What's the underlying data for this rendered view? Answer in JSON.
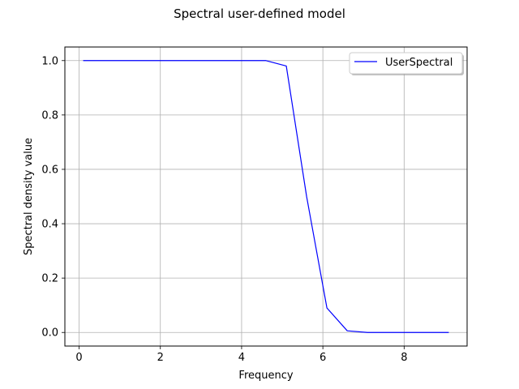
{
  "chart_data": {
    "type": "line",
    "title": "Spectral user-defined model",
    "xlabel": "Frequency",
    "ylabel": "Spectral density value",
    "xlim": [
      -0.35,
      9.55
    ],
    "ylim": [
      -0.05,
      1.05
    ],
    "xticks": [
      0,
      2,
      4,
      6,
      8
    ],
    "yticks": [
      0.0,
      0.2,
      0.4,
      0.6,
      0.8,
      1.0
    ],
    "xtick_labels": [
      "0",
      "2",
      "4",
      "6",
      "8"
    ],
    "ytick_labels": [
      "0.0",
      "0.2",
      "0.4",
      "0.6",
      "0.8",
      "1.0"
    ],
    "grid": true,
    "legend_position": "top-right",
    "series": [
      {
        "name": "UserSpectral",
        "color": "#0000ff",
        "x": [
          0.1,
          0.6,
          1.1,
          1.6,
          2.1,
          2.6,
          3.1,
          3.6,
          4.1,
          4.6,
          5.1,
          5.6,
          6.1,
          6.6,
          7.1,
          7.6,
          8.1,
          8.6,
          9.1
        ],
        "y": [
          1.0,
          1.0,
          1.0,
          1.0,
          1.0,
          1.0,
          1.0,
          1.0,
          1.0,
          1.0,
          0.98,
          0.5,
          0.09,
          0.006,
          0.0,
          0.0,
          0.0,
          0.0,
          0.0
        ]
      }
    ]
  }
}
